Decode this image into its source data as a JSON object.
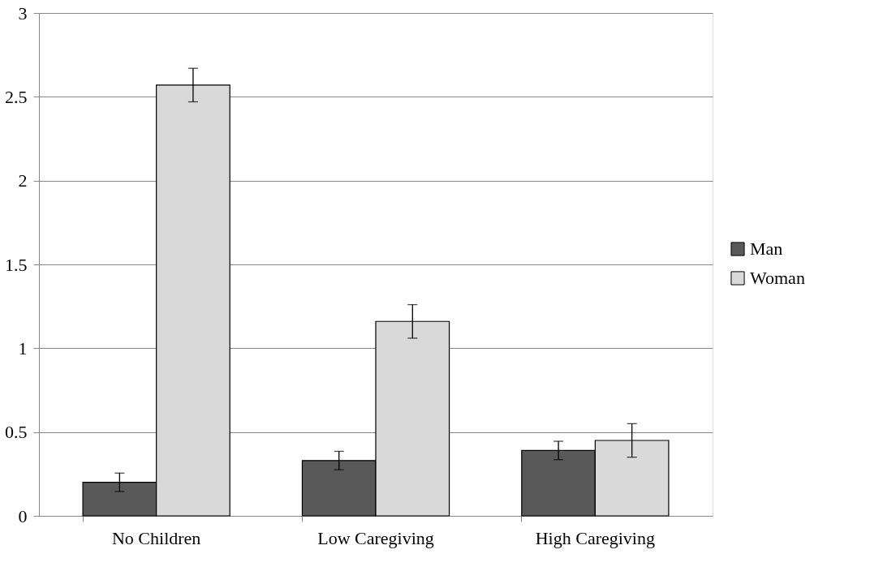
{
  "chart_data": {
    "type": "bar",
    "categories": [
      "No Children",
      "Low Caregiving",
      "High Caregiving"
    ],
    "series": [
      {
        "name": "Man",
        "color": "#595959",
        "values": [
          0.2,
          0.33,
          0.39
        ],
        "errors": [
          0.055,
          0.055,
          0.055
        ]
      },
      {
        "name": "Woman",
        "color": "#d9d9d9",
        "values": [
          2.57,
          1.16,
          0.45
        ],
        "errors": [
          0.1,
          0.1,
          0.1
        ]
      }
    ],
    "ylim": [
      0,
      3
    ],
    "yticks": [
      0,
      0.5,
      1,
      1.5,
      2,
      2.5,
      3
    ],
    "grid": "y",
    "legend": "right"
  }
}
